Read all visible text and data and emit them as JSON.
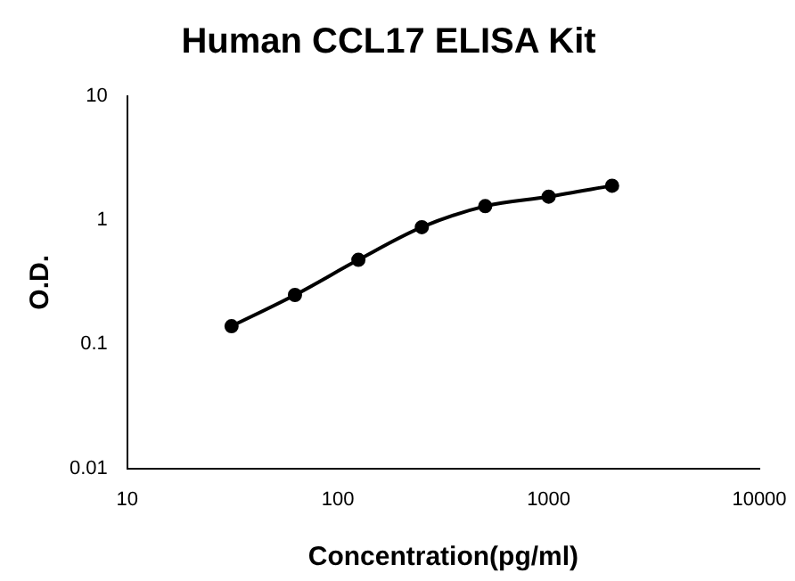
{
  "chart_data": {
    "type": "line",
    "title": "Human CCL17 ELISA Kit",
    "xlabel": "Concentration(pg/ml)",
    "ylabel": "O.D.",
    "x": [
      31.25,
      62.5,
      125,
      250,
      500,
      1000,
      2000
    ],
    "series": [
      {
        "color": "#000000",
        "values": [
          0.14,
          0.25,
          0.48,
          0.88,
          1.3,
          1.55,
          1.9
        ]
      }
    ],
    "log": "xy",
    "xlim": [
      10,
      10000
    ],
    "xticks": [
      10,
      100,
      1000,
      10000
    ],
    "ylim": [
      0.01,
      10
    ],
    "yticks": [
      0.01,
      0.1,
      1,
      10
    ],
    "grid": false,
    "legend": false,
    "marker": "circle",
    "line_style": "solid"
  }
}
